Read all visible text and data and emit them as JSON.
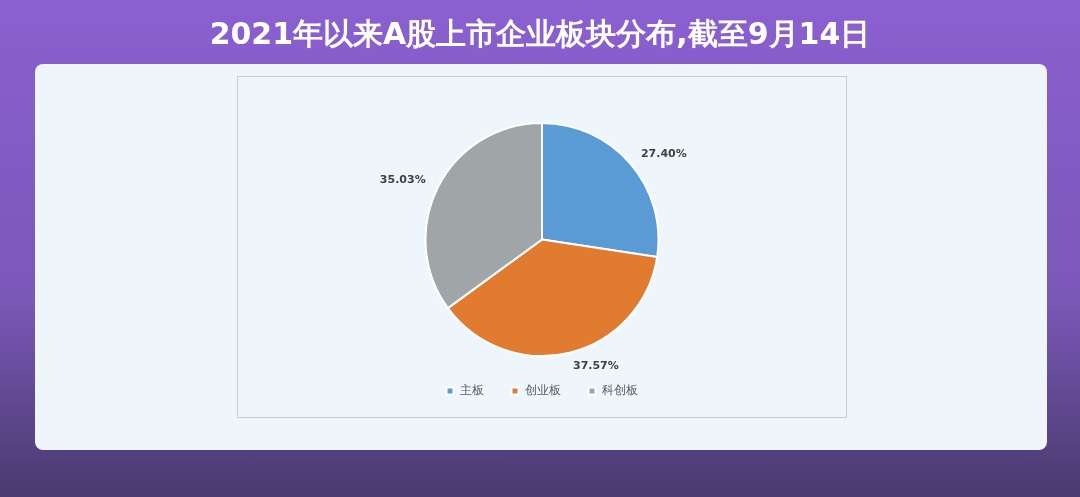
{
  "chart_data": {
    "type": "pie",
    "title": "2021年以来A股上市企业板块分布,截至9月14日",
    "categories": [
      "主板",
      "创业板",
      "科创板"
    ],
    "values": [
      27.4,
      37.57,
      35.03
    ],
    "colors": [
      "#5b9bd5",
      "#e07b30",
      "#a0a5a8"
    ],
    "value_labels": [
      "27.40%",
      "37.57%",
      "35.03%"
    ],
    "legend": "bottom"
  }
}
